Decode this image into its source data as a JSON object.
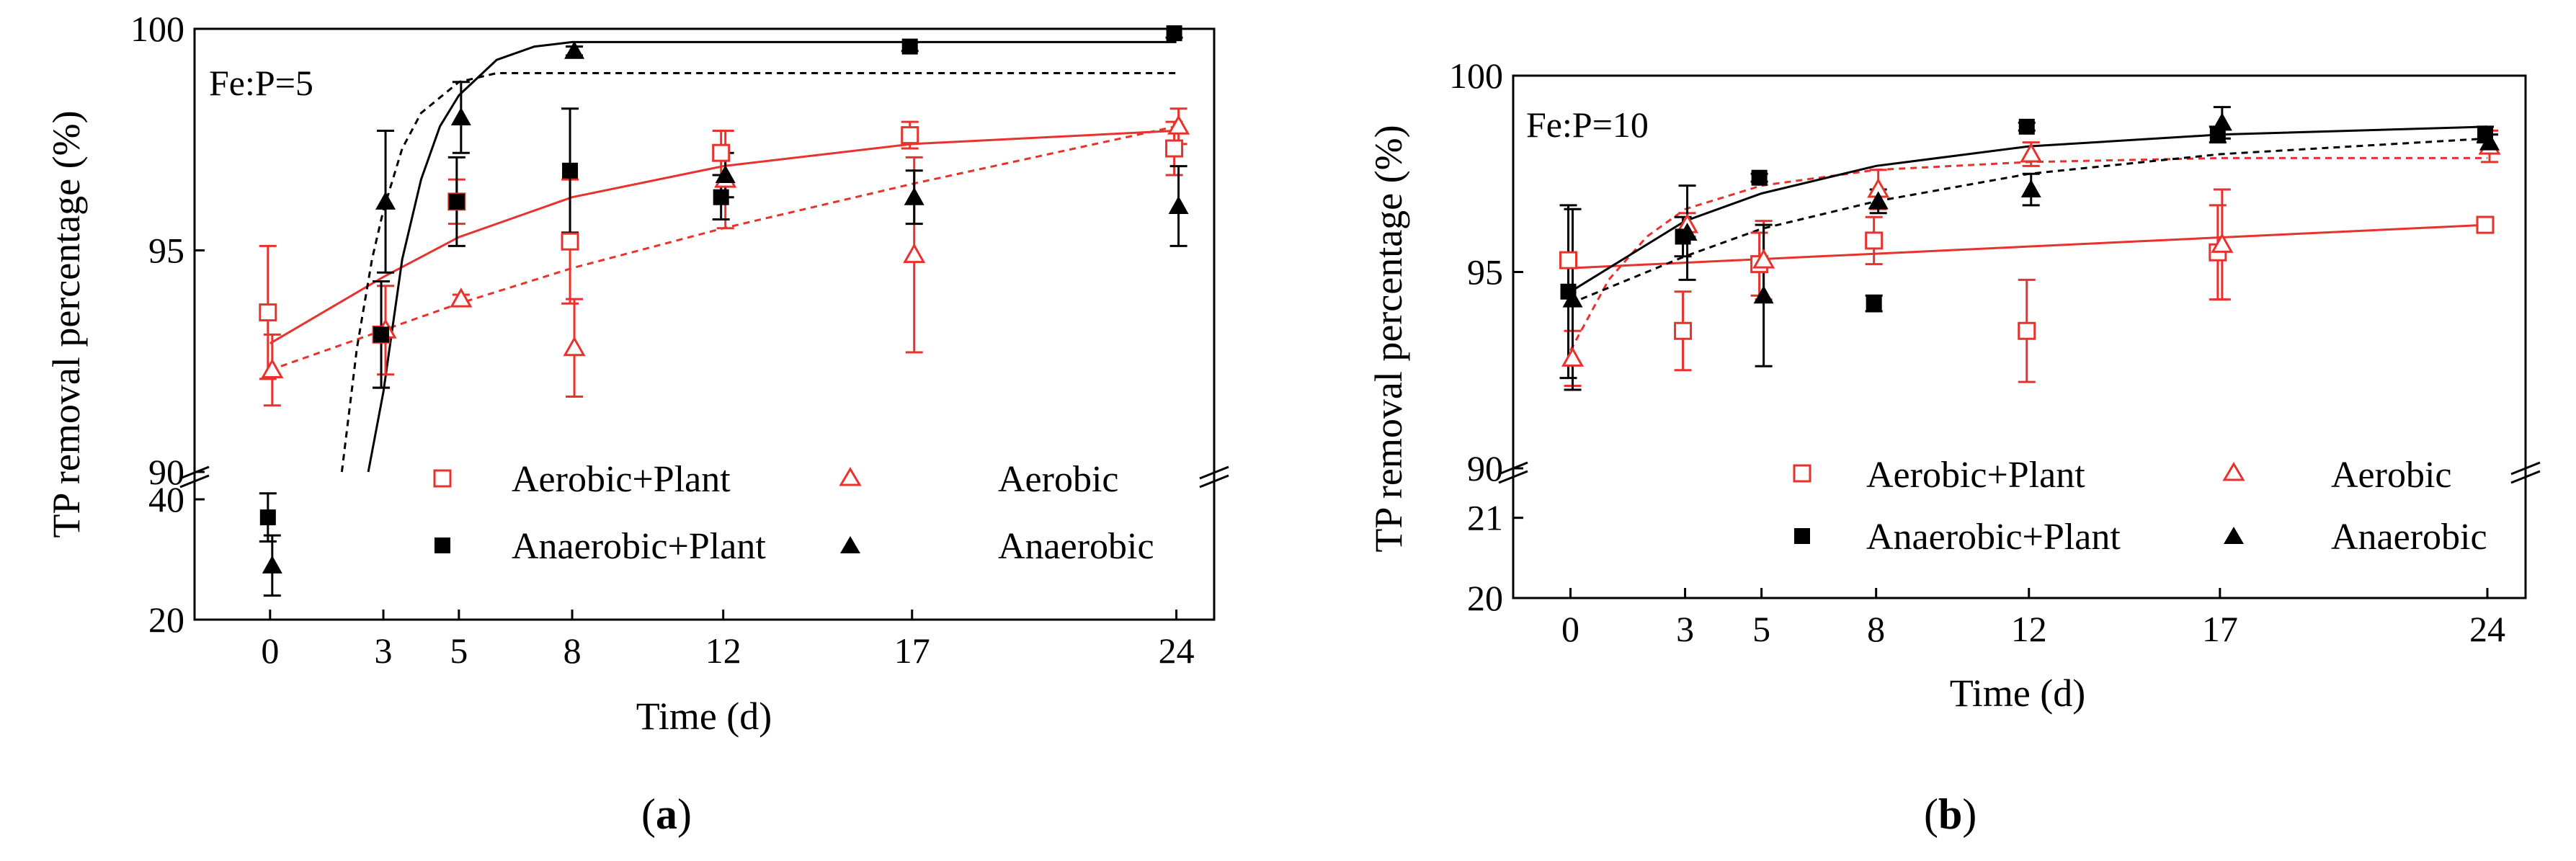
{
  "colors": {
    "red": "#e8322d",
    "black": "#000000"
  },
  "chart_data": [
    {
      "type": "scatter",
      "panel_label_open": "(",
      "panel_label_letter": "a",
      "panel_label_close": ")",
      "annotation": "Fe:P=5",
      "xlabel": "Time (d)",
      "ylabel": "TP removal percentage (%)",
      "x_ticks": [
        0,
        3,
        5,
        8,
        12,
        17,
        24
      ],
      "x_tick_labels": [
        "0",
        "3",
        "5",
        "8",
        "12",
        "17",
        "24"
      ],
      "xlim": [
        -2,
        25
      ],
      "upper_ylim": [
        90,
        100
      ],
      "upper_ticks": [
        90,
        95,
        100
      ],
      "upper_tick_labels": [
        "90",
        "95",
        "100"
      ],
      "lower_ylim": [
        20,
        43
      ],
      "lower_ticks": [
        20,
        40
      ],
      "lower_tick_labels": [
        "20",
        "40"
      ],
      "series": [
        {
          "name": "Aerobic+Plant",
          "marker": "open-square",
          "color": "red",
          "points": [
            [
              0,
              93.6,
              1.5
            ],
            [
              3,
              93.1,
              1.2
            ],
            [
              5,
              96.1,
              0.5
            ],
            [
              8,
              95.2,
              1.4
            ],
            [
              12,
              97.2,
              0.5
            ],
            [
              17,
              97.6,
              0.3
            ],
            [
              24,
              97.3,
              0.6
            ]
          ],
          "fit": {
            "style": "solid",
            "curve": [
              [
                0,
                92.9
              ],
              [
                3,
                94.4
              ],
              [
                5,
                95.3
              ],
              [
                8,
                96.2
              ],
              [
                12,
                96.9
              ],
              [
                17,
                97.4
              ],
              [
                24,
                97.7
              ]
            ]
          }
        },
        {
          "name": "Aerobic",
          "marker": "open-triangle",
          "color": "red",
          "points": [
            [
              0,
              92.3,
              0.8
            ],
            [
              3,
              93.2,
              1.0
            ],
            [
              5,
              93.9,
              0.1
            ],
            [
              8,
              92.8,
              1.1
            ],
            [
              12,
              96.6,
              1.1
            ],
            [
              17,
              94.9,
              2.2
            ],
            [
              24,
              97.8,
              0.4
            ]
          ],
          "fit": {
            "style": "dashed",
            "curve": [
              [
                0,
                92.3
              ],
              [
                3,
                93.2
              ],
              [
                5,
                93.8
              ],
              [
                8,
                94.6
              ],
              [
                12,
                95.5
              ],
              [
                17,
                96.5
              ],
              [
                24,
                97.8
              ]
            ]
          }
        },
        {
          "name": "Anaerobic+Plant",
          "marker": "filled-square",
          "color": "black",
          "points": [
            [
              0,
              37,
              4
            ],
            [
              3,
              93.1,
              1.2
            ],
            [
              5,
              96.1,
              1.0
            ],
            [
              8,
              96.8,
              1.4
            ],
            [
              12,
              96.2,
              0.5
            ],
            [
              17,
              99.6,
              0.1
            ],
            [
              24,
              99.9,
              0.1
            ]
          ],
          "fit": {
            "style": "solid",
            "curve": [
              [
                2.6,
                90
              ],
              [
                3,
                91.8
              ],
              [
                3.5,
                94.8
              ],
              [
                4,
                96.6
              ],
              [
                4.5,
                97.8
              ],
              [
                5,
                98.5
              ],
              [
                6,
                99.3
              ],
              [
                7,
                99.6
              ],
              [
                8,
                99.7
              ],
              [
                12,
                99.7
              ],
              [
                17,
                99.7
              ],
              [
                24,
                99.7
              ]
            ]
          }
        },
        {
          "name": "Anaerobic",
          "marker": "filled-triangle",
          "color": "black",
          "points": [
            [
              0,
              29,
              5
            ],
            [
              3,
              96.1,
              1.6
            ],
            [
              5,
              98.0,
              0.8
            ],
            [
              8,
              99.5,
              0.1
            ],
            [
              12,
              96.7,
              0.5
            ],
            [
              17,
              96.2,
              0.6
            ],
            [
              24,
              96.0,
              0.9
            ]
          ],
          "fit": {
            "style": "dashed",
            "curve": [
              [
                1.9,
                90
              ],
              [
                2.3,
                92.8
              ],
              [
                2.7,
                94.8
              ],
              [
                3,
                95.9
              ],
              [
                3.5,
                97.3
              ],
              [
                4,
                98.1
              ],
              [
                5,
                98.8
              ],
              [
                6,
                99.0
              ],
              [
                8,
                99.0
              ],
              [
                12,
                99.0
              ],
              [
                17,
                99.0
              ],
              [
                24,
                99.0
              ]
            ]
          }
        }
      ]
    },
    {
      "type": "scatter",
      "panel_label_open": "(",
      "panel_label_letter": "b",
      "panel_label_close": ")",
      "annotation": "Fe:P=10",
      "xlabel": "Time (d)",
      "ylabel": "TP removal percentage (%)",
      "x_ticks": [
        0,
        3,
        5,
        8,
        12,
        17,
        24
      ],
      "x_tick_labels": [
        "0",
        "3",
        "5",
        "8",
        "12",
        "17",
        "24"
      ],
      "xlim": [
        -1.5,
        25
      ],
      "upper_ylim": [
        90,
        100
      ],
      "upper_ticks": [
        90,
        95,
        100
      ],
      "upper_tick_labels": [
        "90",
        "95",
        "100"
      ],
      "lower_ylim": [
        20,
        21.5
      ],
      "lower_ticks": [
        20,
        21
      ],
      "lower_tick_labels": [
        "20",
        "21"
      ],
      "series": [
        {
          "name": "Aerobic+Plant",
          "marker": "open-square",
          "color": "red",
          "points": [
            [
              0,
              95.3,
              0.2
            ],
            [
              3,
              93.5,
              1.0
            ],
            [
              5,
              95.2,
              0.8
            ],
            [
              8,
              95.8,
              0.6
            ],
            [
              12,
              93.5,
              1.3
            ],
            [
              17,
              95.5,
              1.2
            ],
            [
              24,
              96.2,
              0.2
            ]
          ],
          "fit": {
            "style": "solid",
            "curve": [
              [
                0,
                95.1
              ],
              [
                24,
                96.2
              ]
            ]
          }
        },
        {
          "name": "Aerobic",
          "marker": "open-triangle",
          "color": "red",
          "points": [
            [
              0,
              92.8,
              0.7
            ],
            [
              3,
              96.2,
              0.3
            ],
            [
              5,
              95.3,
              1.0
            ],
            [
              8,
              97.1,
              0.5
            ],
            [
              12,
              98.0,
              0.3
            ],
            [
              17,
              95.7,
              1.4
            ],
            [
              24,
              98.2,
              0.4
            ]
          ],
          "fit": {
            "style": "dashed",
            "curve": [
              [
                0,
                93.0
              ],
              [
                1,
                94.8
              ],
              [
                2,
                95.9
              ],
              [
                3,
                96.6
              ],
              [
                5,
                97.2
              ],
              [
                8,
                97.6
              ],
              [
                12,
                97.8
              ],
              [
                17,
                97.9
              ],
              [
                24,
                97.9
              ]
            ]
          }
        },
        {
          "name": "Anaerobic+Plant",
          "marker": "filled-square",
          "color": "black",
          "points": [
            [
              0,
              94.5,
              2.2
            ],
            [
              3,
              95.9,
              0.5
            ],
            [
              5,
              97.4,
              0.1
            ],
            [
              8,
              94.2,
              0.2
            ],
            [
              12,
              98.7,
              0.1
            ],
            [
              17,
              98.5,
              0.2
            ],
            [
              24,
              98.5,
              0.2
            ]
          ],
          "fit": {
            "style": "solid",
            "curve": [
              [
                0,
                94.5
              ],
              [
                3,
                96.3
              ],
              [
                5,
                97.0
              ],
              [
                8,
                97.7
              ],
              [
                12,
                98.2
              ],
              [
                17,
                98.5
              ],
              [
                24,
                98.7
              ]
            ]
          }
        },
        {
          "name": "Anaerobic",
          "marker": "filled-triangle",
          "color": "black",
          "points": [
            [
              0,
              94.3,
              2.3
            ],
            [
              3,
              96.0,
              1.2
            ],
            [
              5,
              94.4,
              1.8
            ],
            [
              8,
              96.8,
              0.3
            ],
            [
              12,
              97.1,
              0.4
            ],
            [
              17,
              98.8,
              0.4
            ],
            [
              24,
              98.3,
              0.2
            ]
          ],
          "fit": {
            "style": "dashed",
            "curve": [
              [
                0,
                94.2
              ],
              [
                3,
                95.4
              ],
              [
                5,
                96.1
              ],
              [
                8,
                96.8
              ],
              [
                12,
                97.5
              ],
              [
                17,
                98.0
              ],
              [
                24,
                98.4
              ]
            ]
          }
        }
      ]
    }
  ]
}
